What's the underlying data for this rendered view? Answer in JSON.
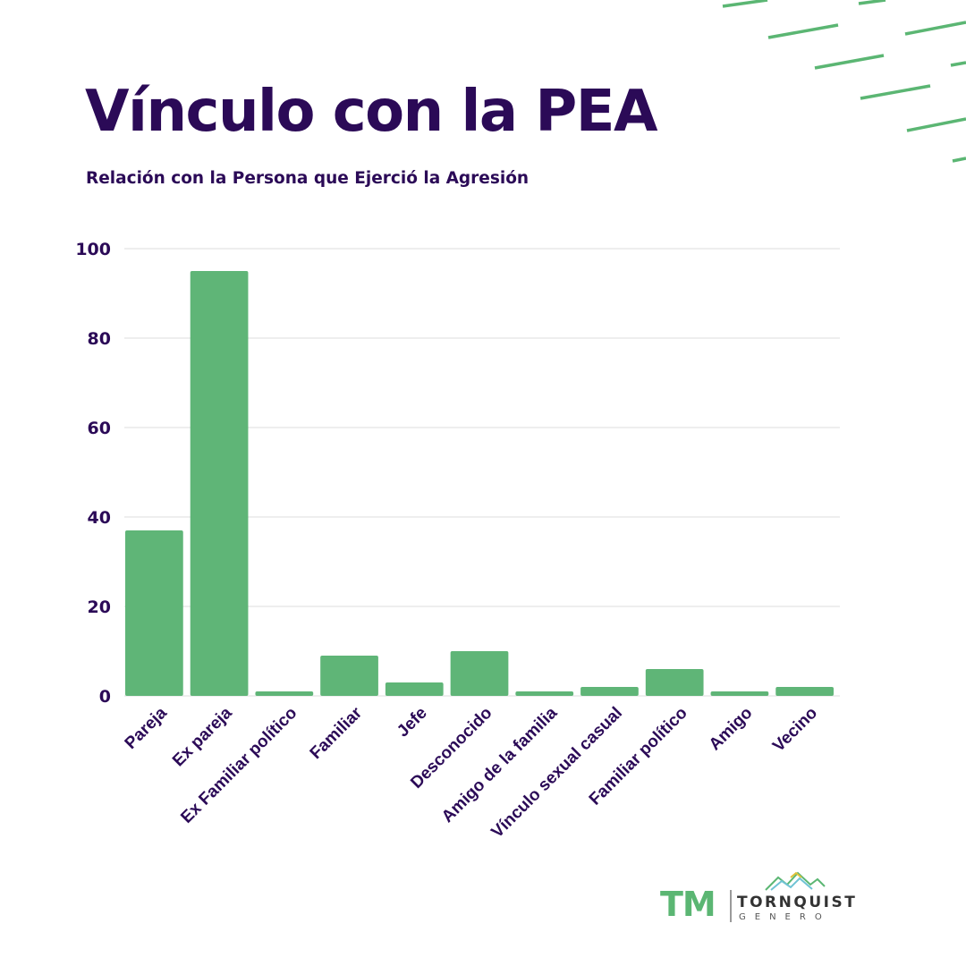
{
  "page": {
    "title": "Vínculo con la PEA",
    "subtitle": "Relación con la Persona que Ejerció la Agresión"
  },
  "colors": {
    "bar": "#5fb577",
    "text": "#2b0a57",
    "grid": "#e4e4e4",
    "accent": "#5bb673"
  },
  "logo": {
    "mark": "TM",
    "word": "TORNQUIST",
    "sub": "GENERO",
    "icon": "mountains-icon"
  },
  "chart_data": {
    "type": "bar",
    "categories": [
      "Pareja",
      "Ex pareja",
      "Ex Familiar político",
      "Familiar",
      "Jefe",
      "Desconocido",
      "Amigo de la familia",
      "Vínculo sexual casual",
      "Familiar político",
      "Amigo",
      "Vecino"
    ],
    "values": [
      37,
      95,
      1,
      9,
      3,
      10,
      1,
      2,
      6,
      1,
      2
    ],
    "yticks": [
      0,
      20,
      40,
      60,
      80,
      100
    ],
    "ylim": [
      0,
      100
    ],
    "xlabel": "",
    "ylabel": "",
    "grid": true,
    "legend": "none"
  }
}
